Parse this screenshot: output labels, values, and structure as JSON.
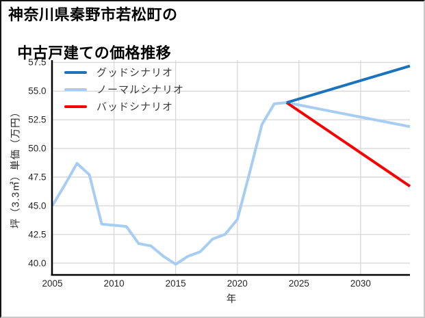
{
  "window": {
    "title_line1": "神奈川県秦野市若松町の",
    "title_line2": "中古戸建ての価格推移"
  },
  "legend": {
    "items": [
      {
        "label": "グッドシナリオ",
        "color": "#1b74bb"
      },
      {
        "label": "ノーマルシナリオ",
        "color": "#a7cdf2"
      },
      {
        "label": "バッドシナリオ",
        "color": "#f80000"
      }
    ]
  },
  "axes": {
    "xlabel": "年",
    "ylabel": "坪（3.3㎡）単価（万円）",
    "x_tick_labels": [
      "2005",
      "2010",
      "2015",
      "2020",
      "2025",
      "2030"
    ],
    "y_tick_labels": [
      "40.0",
      "42.5",
      "45.0",
      "47.5",
      "50.0",
      "52.5",
      "55.0",
      "57.5"
    ]
  },
  "chart_data": {
    "type": "line",
    "title": "神奈川県秦野市若松町の中古戸建ての価格推移",
    "xlabel": "年",
    "ylabel": "坪（3.3㎡）単価（万円）",
    "xlim": [
      2005,
      2034
    ],
    "ylim": [
      38.97,
      57.7
    ],
    "grid": true,
    "legend_position": "upper-left",
    "grid_color": "#d9d9d9",
    "spine_color": "#000000",
    "series": [
      {
        "name": "グッドシナリオ",
        "color": "#1b74bb",
        "x": [
          2024,
          2034
        ],
        "values": [
          54.0,
          57.2
        ]
      },
      {
        "name": "ノーマルシナリオ",
        "color": "#a7cdf2",
        "x": [
          2005,
          2006,
          2007,
          2008,
          2009,
          2010,
          2011,
          2012,
          2013,
          2014,
          2015,
          2016,
          2017,
          2018,
          2019,
          2020,
          2021,
          2022,
          2023,
          2024,
          2034
        ],
        "values": [
          45.0,
          46.8,
          48.7,
          47.7,
          43.4,
          43.3,
          43.2,
          41.7,
          41.5,
          40.6,
          39.9,
          40.6,
          41.0,
          42.1,
          42.5,
          43.8,
          47.9,
          52.1,
          53.9,
          54.0,
          51.9
        ]
      },
      {
        "name": "バッドシナリオ",
        "color": "#f80000",
        "x": [
          2024,
          2034
        ],
        "values": [
          54.0,
          46.7
        ]
      }
    ]
  }
}
